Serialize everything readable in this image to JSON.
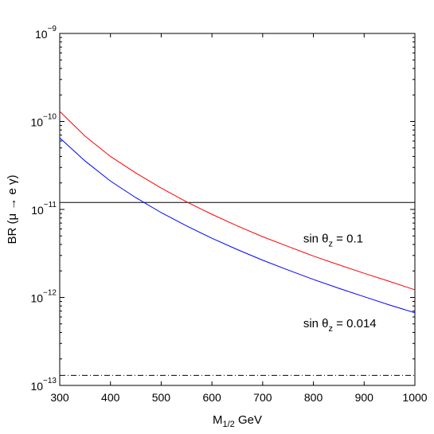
{
  "chart_data": {
    "type": "line",
    "xlabel": {
      "main": "M",
      "sub": "1/2",
      "rest": " GeV"
    },
    "ylabel": "BR (μ → e γ)",
    "xlim": [
      300,
      1000
    ],
    "ylim_log10": [
      -13,
      -9
    ],
    "yscale": "log",
    "x_ticks": [
      300,
      400,
      500,
      600,
      700,
      800,
      900,
      1000
    ],
    "x_tick_labels": [
      "300",
      "400",
      "500",
      "600",
      "700",
      "800",
      "900",
      "1000"
    ],
    "y_ticks_exp": [
      -13,
      -12,
      -11,
      -10,
      -9
    ],
    "y_tick_labels": [
      {
        "base": "10",
        "exp": "−13"
      },
      {
        "base": "10",
        "exp": "−12"
      },
      {
        "base": "10",
        "exp": "−11"
      },
      {
        "base": "10",
        "exp": "−10"
      },
      {
        "base": "10",
        "exp": "−9"
      }
    ],
    "series": [
      {
        "name": "sin θz = 0.1",
        "color": "#ff0000",
        "x": [
          300,
          350,
          400,
          450,
          500,
          550,
          600,
          650,
          700,
          750,
          800,
          850,
          900,
          950,
          1000
        ],
        "y": [
          1.3e-10,
          6.8e-11,
          4e-11,
          2.6e-11,
          1.75e-11,
          1.22e-11,
          8.8e-12,
          6.5e-12,
          4.9e-12,
          3.8e-12,
          2.95e-12,
          2.35e-12,
          1.88e-12,
          1.52e-12,
          1.22e-12
        ]
      },
      {
        "name": "sin θz = 0.014",
        "color": "#0000ff",
        "x": [
          300,
          350,
          400,
          450,
          500,
          550,
          600,
          650,
          700,
          750,
          800,
          850,
          900,
          950,
          1000
        ],
        "y": [
          6.5e-11,
          3.55e-11,
          2.1e-11,
          1.36e-11,
          9.2e-12,
          6.5e-12,
          4.7e-12,
          3.5e-12,
          2.65e-12,
          2.05e-12,
          1.6e-12,
          1.27e-12,
          1.02e-12,
          8.2e-13,
          6.7e-13
        ]
      }
    ],
    "reference_lines": [
      {
        "y": 1.2e-11,
        "style": "solid",
        "color": "#000000"
      },
      {
        "y": 1.3e-13,
        "style": "dash-dot",
        "color": "#000000"
      }
    ],
    "annotations": [
      {
        "prefix": "sin θ",
        "sub": "z",
        "suffix": " = 0.1",
        "x": 780,
        "y": 4.2e-12
      },
      {
        "prefix": "sin θ",
        "sub": "z",
        "suffix": " = 0.014",
        "x": 780,
        "y": 4.6e-13
      }
    ],
    "grid": false
  }
}
